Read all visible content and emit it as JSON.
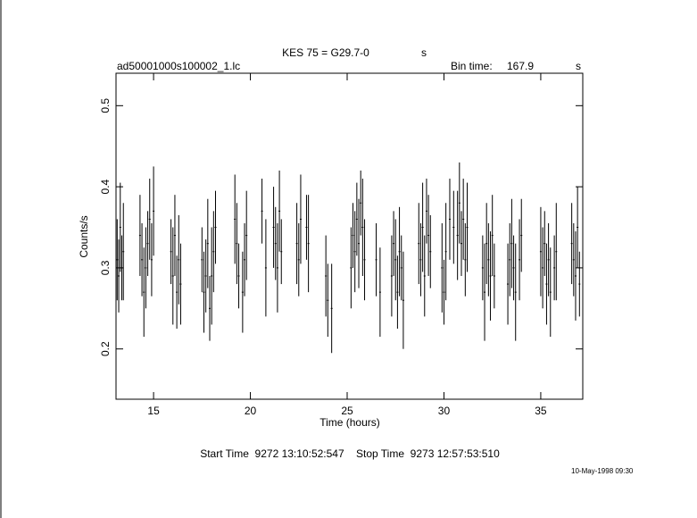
{
  "chart_data": {
    "type": "errorbar",
    "title": "KES 75 = G29.7-0",
    "title_unit": "s",
    "file_name": "ad50001000s100002_1.lc",
    "bin_time_label": "Bin time:",
    "bin_time": "167.9",
    "bin_time_unit": "s",
    "x_label": "Time (hours)",
    "y_label": "Counts/s",
    "footer": "Start Time  9272 13:10:52:547    Stop Time  9273 12:57:53:510",
    "date_stamp": "10-May-1998 09:30",
    "color": "#000000",
    "xlim": [
      13.06,
      37.17
    ],
    "ylim": [
      0.138,
      0.54
    ],
    "xticks": [
      15,
      20,
      25,
      30,
      35
    ],
    "yticks": [
      0.2,
      0.3,
      0.4,
      0.5
    ],
    "x": [
      13.12,
      13.2,
      13.28,
      13.36,
      13.44,
      14.3,
      14.4,
      14.5,
      14.6,
      14.7,
      14.8,
      14.9,
      15.0,
      15.9,
      16.0,
      16.1,
      16.2,
      16.3,
      16.4,
      17.5,
      17.6,
      17.7,
      17.8,
      17.9,
      18.0,
      18.1,
      18.2,
      19.2,
      19.3,
      19.4,
      19.6,
      19.7,
      19.8,
      20.6,
      20.8,
      21.2,
      21.3,
      21.4,
      21.5,
      21.6,
      22.4,
      22.5,
      22.6,
      22.9,
      23.0,
      23.9,
      24.0,
      24.2,
      25.2,
      25.3,
      25.4,
      25.5,
      25.6,
      25.7,
      25.8,
      25.9,
      26.5,
      26.7,
      27.3,
      27.4,
      27.5,
      27.6,
      27.7,
      27.8,
      27.9,
      28.7,
      28.8,
      28.9,
      29.0,
      29.1,
      29.2,
      29.3,
      29.9,
      30.0,
      30.1,
      30.3,
      30.5,
      30.7,
      30.8,
      30.9,
      31.0,
      31.1,
      31.2,
      32.0,
      32.1,
      32.2,
      32.3,
      32.4,
      32.5,
      32.6,
      33.3,
      33.4,
      33.5,
      33.6,
      33.7,
      33.9,
      34.0,
      35.0,
      35.1,
      35.2,
      35.3,
      35.4,
      35.5,
      35.7,
      35.8,
      36.6,
      36.7,
      36.8,
      36.9,
      37.0
    ],
    "values": [
      0.31,
      0.29,
      0.35,
      0.3,
      0.32,
      0.34,
      0.31,
      0.27,
      0.3,
      0.33,
      0.36,
      0.31,
      0.37,
      0.32,
      0.29,
      0.34,
      0.27,
      0.31,
      0.28,
      0.31,
      0.27,
      0.29,
      0.33,
      0.25,
      0.29,
      0.32,
      0.35,
      0.36,
      0.33,
      0.29,
      0.27,
      0.31,
      0.34,
      0.37,
      0.3,
      0.35,
      0.33,
      0.3,
      0.37,
      0.32,
      0.33,
      0.31,
      0.36,
      0.35,
      0.33,
      0.29,
      0.26,
      0.25,
      0.3,
      0.34,
      0.32,
      0.36,
      0.33,
      0.38,
      0.35,
      0.31,
      0.31,
      0.27,
      0.29,
      0.33,
      0.31,
      0.27,
      0.32,
      0.3,
      0.26,
      0.33,
      0.31,
      0.35,
      0.29,
      0.37,
      0.34,
      0.32,
      0.3,
      0.27,
      0.32,
      0.36,
      0.35,
      0.34,
      0.38,
      0.33,
      0.36,
      0.31,
      0.35,
      0.3,
      0.27,
      0.33,
      0.31,
      0.29,
      0.34,
      0.29,
      0.28,
      0.31,
      0.33,
      0.3,
      0.27,
      0.31,
      0.34,
      0.32,
      0.3,
      0.33,
      0.28,
      0.31,
      0.27,
      0.3,
      0.32,
      0.33,
      0.31,
      0.29,
      0.35,
      0.28
    ],
    "errors": [
      0.05,
      0.045,
      0.055,
      0.04,
      0.06,
      0.05,
      0.045,
      0.055,
      0.05,
      0.04,
      0.05,
      0.045,
      0.055,
      0.04,
      0.06,
      0.05,
      0.045,
      0.055,
      0.05,
      0.04,
      0.05,
      0.045,
      0.055,
      0.04,
      0.06,
      0.05,
      0.045,
      0.055,
      0.05,
      0.04,
      0.05,
      0.045,
      0.055,
      0.04,
      0.06,
      0.05,
      0.045,
      0.055,
      0.05,
      0.04,
      0.05,
      0.045,
      0.055,
      0.04,
      0.06,
      0.05,
      0.045,
      0.055,
      0.05,
      0.04,
      0.05,
      0.045,
      0.055,
      0.04,
      0.06,
      0.05,
      0.045,
      0.055,
      0.05,
      0.04,
      0.05,
      0.045,
      0.055,
      0.04,
      0.06,
      0.05,
      0.045,
      0.055,
      0.05,
      0.04,
      0.05,
      0.045,
      0.055,
      0.04,
      0.06,
      0.05,
      0.045,
      0.055,
      0.05,
      0.04,
      0.05,
      0.045,
      0.055,
      0.04,
      0.06,
      0.05,
      0.045,
      0.055,
      0.05,
      0.04,
      0.05,
      0.045,
      0.055,
      0.04,
      0.06,
      0.05,
      0.045,
      0.055,
      0.05,
      0.04,
      0.05,
      0.045,
      0.055,
      0.04,
      0.06,
      0.05,
      0.045,
      0.055,
      0.05,
      0.04
    ]
  }
}
